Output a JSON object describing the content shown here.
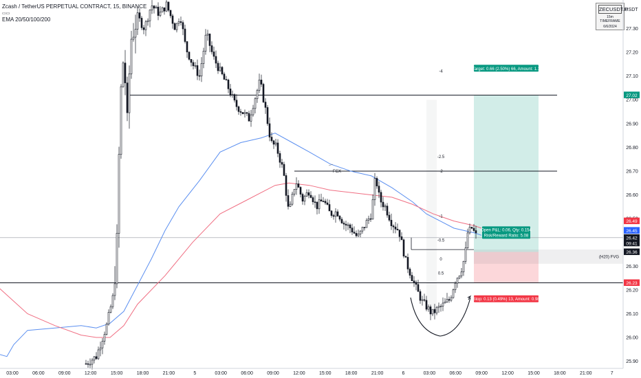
{
  "header": {
    "title": "Zcash / TetherUS PERPETUAL CONTRACT, 15, BINANCE",
    "indicator": "EMA 20/50/100/200"
  },
  "watermark": {
    "symbol": "ZECUSDT.P",
    "timeframe": "15m TIMEFRAME",
    "date": "6/6/2024"
  },
  "chart_data": {
    "type": "candlestick",
    "currency": "USDT",
    "ylim": [
      25.87,
      27.42
    ],
    "y_ticks": [
      25.9,
      26.0,
      26.1,
      26.2,
      26.3,
      26.4,
      26.5,
      26.6,
      26.7,
      26.8,
      26.9,
      27.0,
      27.1,
      27.2,
      27.3
    ],
    "x_tick_labels": [
      "03:00",
      "06:00",
      "09:00",
      "12:00",
      "15:00",
      "18:00",
      "21:00",
      "5",
      "03:00",
      "06:00",
      "09:00",
      "12:00",
      "15:00",
      "18:00",
      "21:00",
      "6",
      "03:00",
      "06:00",
      "09:00",
      "12:00",
      "15:00",
      "18:00",
      "21:00",
      "7"
    ],
    "price_tags": [
      {
        "value": "27.02",
        "color": "#089981"
      },
      {
        "value": "26.49",
        "color": "#f23645"
      },
      {
        "value": "26.45",
        "color": "#2962ff"
      },
      {
        "value": "26.42",
        "color": "#131722"
      },
      {
        "value": "09:41",
        "color": "#131722"
      },
      {
        "value": "26.36",
        "color": "#131722"
      },
      {
        "value": "26.23",
        "color": "#f23645"
      }
    ],
    "levels": [
      27.02,
      26.7,
      26.23
    ],
    "ema_series": [
      {
        "color": "#5b8ff0",
        "values": [
          [
            -2,
            25.93
          ],
          [
            10,
            25.92
          ],
          [
            20,
            25.97
          ],
          [
            40,
            26.03
          ],
          [
            80,
            26.04
          ],
          [
            118,
            26.05
          ],
          [
            140,
            26.04
          ],
          [
            160,
            26.06
          ],
          [
            180,
            26.11
          ],
          [
            200,
            26.22
          ],
          [
            220,
            26.33
          ],
          [
            240,
            26.45
          ],
          [
            260,
            26.55
          ],
          [
            290,
            26.66
          ],
          [
            320,
            26.78
          ],
          [
            350,
            26.82
          ],
          [
            380,
            26.84
          ],
          [
            400,
            26.86
          ],
          [
            425,
            26.82
          ],
          [
            450,
            26.78
          ],
          [
            480,
            26.73
          ],
          [
            510,
            26.7
          ],
          [
            540,
            26.68
          ],
          [
            570,
            26.63
          ],
          [
            600,
            26.57
          ],
          [
            620,
            26.52
          ],
          [
            640,
            26.49
          ],
          [
            660,
            26.46
          ],
          [
            690,
            26.44
          ],
          [
            700,
            26.43
          ]
        ]
      },
      {
        "color": "#f06e82",
        "values": [
          [
            -2,
            26.21
          ],
          [
            40,
            26.1
          ],
          [
            80,
            26.05
          ],
          [
            118,
            26.01
          ],
          [
            140,
            26.0
          ],
          [
            160,
            26.0
          ],
          [
            180,
            26.05
          ],
          [
            200,
            26.14
          ],
          [
            240,
            26.26
          ],
          [
            280,
            26.4
          ],
          [
            320,
            26.52
          ],
          [
            360,
            26.58
          ],
          [
            380,
            26.61
          ],
          [
            400,
            26.64
          ],
          [
            420,
            26.65
          ],
          [
            450,
            26.64
          ],
          [
            480,
            26.62
          ],
          [
            510,
            26.61
          ],
          [
            540,
            26.6
          ],
          [
            570,
            26.59
          ],
          [
            600,
            26.56
          ],
          [
            630,
            26.52
          ],
          [
            660,
            26.49
          ],
          [
            690,
            26.47
          ],
          [
            700,
            26.46
          ]
        ]
      }
    ],
    "fib_labels": [
      "-4",
      "-2.5",
      "-2",
      "-1",
      "-0.5",
      "0",
      "0.5"
    ],
    "annotations": {
      "fvg_tag": "FCX",
      "zone_tag": "(H20) FVG",
      "target": "Target: 0.66 (2.50%) 66, Amount: 1.1",
      "open_info": "Open P&L: 0.06, Qty: 0.154",
      "rr": "Risk/Reward Ratio: 5.08",
      "stop": "Stop: 0.13 (0.49%) 13, Amount: 0.98"
    }
  }
}
